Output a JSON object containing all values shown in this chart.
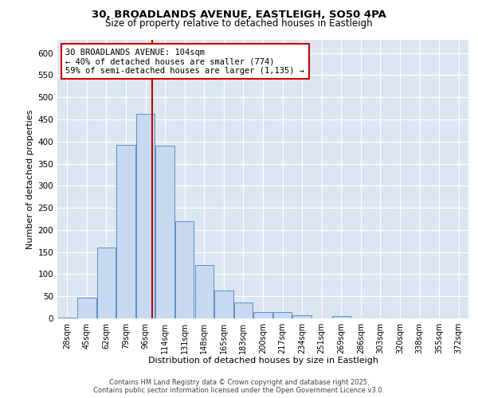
{
  "title_line1": "30, BROADLANDS AVENUE, EASTLEIGH, SO50 4PA",
  "title_line2": "Size of property relative to detached houses in Eastleigh",
  "xlabel": "Distribution of detached houses by size in Eastleigh",
  "ylabel": "Number of detached properties",
  "bar_labels": [
    "28sqm",
    "45sqm",
    "62sqm",
    "79sqm",
    "96sqm",
    "114sqm",
    "131sqm",
    "148sqm",
    "165sqm",
    "183sqm",
    "200sqm",
    "217sqm",
    "234sqm",
    "251sqm",
    "269sqm",
    "286sqm",
    "303sqm",
    "320sqm",
    "338sqm",
    "355sqm",
    "372sqm"
  ],
  "bar_values": [
    2,
    46,
    160,
    393,
    463,
    390,
    220,
    120,
    63,
    36,
    15,
    15,
    8,
    0,
    5,
    0,
    0,
    0,
    0,
    0,
    0
  ],
  "bar_color": "#c6d9f0",
  "bar_edge_color": "#5b8fc7",
  "vline_pos": 4.35,
  "vline_color": "#cc0000",
  "annotation_text": "30 BROADLANDS AVENUE: 104sqm\n← 40% of detached houses are smaller (774)\n59% of semi-detached houses are larger (1,135) →",
  "annotation_box_edgecolor": "#cc0000",
  "ylim": [
    0,
    630
  ],
  "yticks": [
    0,
    50,
    100,
    150,
    200,
    250,
    300,
    350,
    400,
    450,
    500,
    550,
    600
  ],
  "fig_bg_color": "#ffffff",
  "plot_bg_color": "#dce6f1",
  "grid_color": "#ffffff",
  "footer_line1": "Contains HM Land Registry data © Crown copyright and database right 2025.",
  "footer_line2": "Contains public sector information licensed under the Open Government Licence v3.0."
}
